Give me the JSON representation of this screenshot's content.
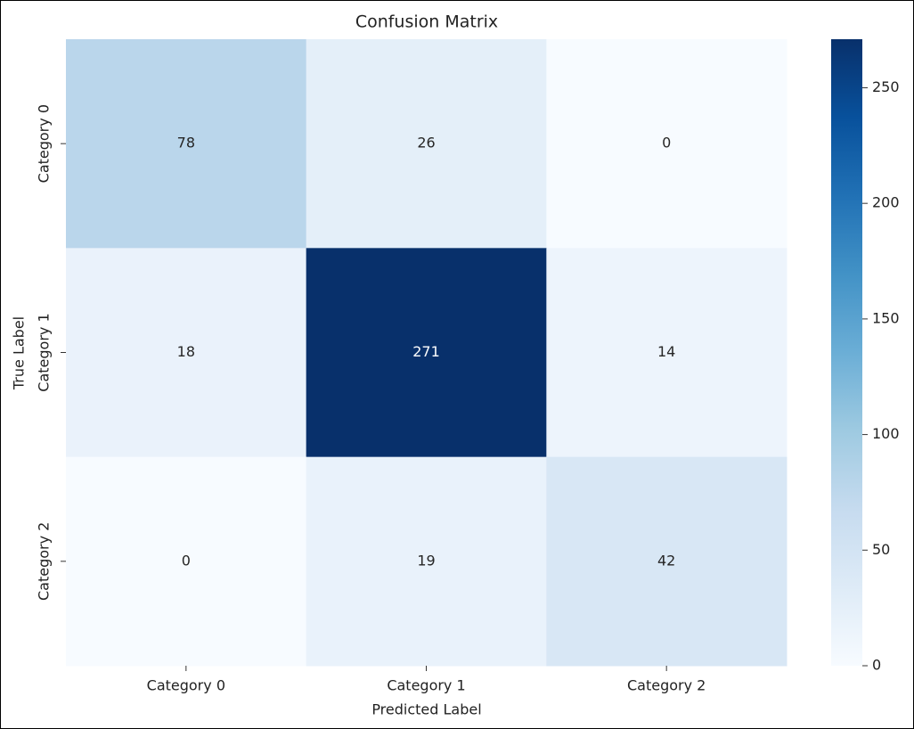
{
  "chart_data": {
    "type": "heatmap",
    "title": "Confusion Matrix",
    "x_label": "Predicted Label",
    "y_label": "True Label",
    "categories": [
      "Category 0",
      "Category 1",
      "Category 2"
    ],
    "y_categories": [
      "Category 0",
      "Category 1",
      "Category 2"
    ],
    "values": [
      [
        78,
        26,
        0
      ],
      [
        18,
        271,
        14
      ],
      [
        0,
        19,
        42
      ]
    ],
    "colormap": "Blues",
    "clim": [
      0,
      271
    ],
    "cticks": [
      0,
      50,
      100,
      150,
      200,
      250
    ]
  }
}
